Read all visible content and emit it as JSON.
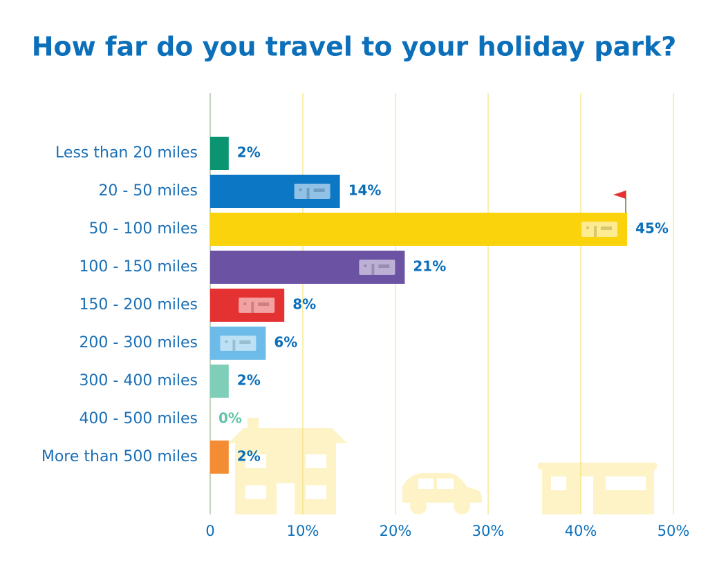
{
  "chart_data": {
    "type": "bar",
    "orientation": "horizontal",
    "title": "How far do you travel to your holiday park?",
    "categories": [
      "Less than 20 miles",
      "20 - 50 miles",
      "50 - 100 miles",
      "100 - 150 miles",
      "150 - 200 miles",
      "200 - 300 miles",
      "300 - 400 miles",
      "400 - 500 miles",
      "More than 500 miles"
    ],
    "values": [
      2,
      14,
      45,
      21,
      8,
      6,
      2,
      0,
      2
    ],
    "value_labels": [
      "2%",
      "14%",
      "45%",
      "21%",
      "8%",
      "6%",
      "2%",
      "0%",
      "2%"
    ],
    "colors": [
      "#0a9470",
      "#0b77c5",
      "#fbd30c",
      "#6b52a3",
      "#e43232",
      "#6cbbe8",
      "#7fceb8",
      "#63c4a8",
      "#f48c33"
    ],
    "xlim": [
      0,
      50
    ],
    "xticks": [
      0,
      {
        "value": 10,
        "label": "10%"
      },
      {
        "value": 20,
        "label": "20%"
      },
      {
        "value": 30,
        "label": "30%"
      },
      {
        "value": 40,
        "label": "40%"
      },
      {
        "value": 50,
        "label": "50%"
      }
    ],
    "grid": true
  }
}
